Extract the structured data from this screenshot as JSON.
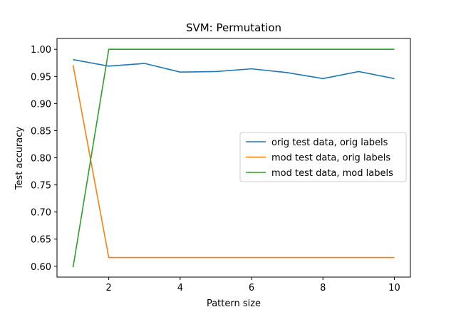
{
  "chart_data": {
    "type": "line",
    "title": "SVM: Permutation",
    "xlabel": "Pattern size",
    "ylabel": "Test accuracy",
    "xlim": [
      0.55,
      10.45
    ],
    "ylim": [
      0.58,
      1.02
    ],
    "xticks": [
      2,
      4,
      6,
      8,
      10
    ],
    "xtick_labels": [
      "2",
      "4",
      "6",
      "8",
      "10"
    ],
    "yticks": [
      0.6,
      0.65,
      0.7,
      0.75,
      0.8,
      0.85,
      0.9,
      0.95,
      1.0
    ],
    "ytick_labels": [
      "0.60",
      "0.65",
      "0.70",
      "0.75",
      "0.80",
      "0.85",
      "0.90",
      "0.95",
      "1.00"
    ],
    "grid": false,
    "legend_position": "center-right",
    "x": [
      1,
      2,
      3,
      4,
      5,
      6,
      7,
      8,
      9,
      10
    ],
    "series": [
      {
        "name": "orig test data, orig labels",
        "color": "#1f77b4",
        "values": [
          0.981,
          0.969,
          0.974,
          0.958,
          0.959,
          0.964,
          0.957,
          0.946,
          0.959,
          0.946
        ]
      },
      {
        "name": "mod test data, orig labels",
        "color": "#ff7f0e",
        "values": [
          0.971,
          0.616,
          0.616,
          0.616,
          0.616,
          0.616,
          0.616,
          0.616,
          0.616,
          0.616
        ]
      },
      {
        "name": "mod test data, mod labels",
        "color": "#2ca02c",
        "values": [
          0.598,
          1.0,
          1.0,
          1.0,
          1.0,
          1.0,
          1.0,
          1.0,
          1.0,
          1.0
        ]
      }
    ]
  }
}
